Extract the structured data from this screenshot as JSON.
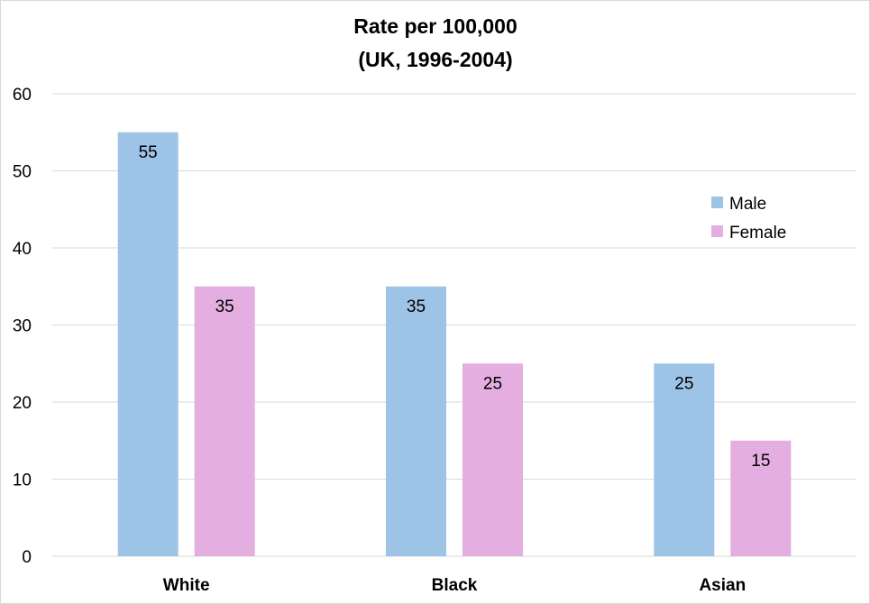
{
  "chart_data": {
    "type": "bar",
    "title": "Rate per 100,000",
    "subtitle": "(UK, 1996-2004)",
    "categories": [
      "White",
      "Black",
      "Asian"
    ],
    "series": [
      {
        "name": "Male",
        "values": [
          55,
          35,
          25
        ],
        "color": "#9dc3e6"
      },
      {
        "name": "Female",
        "values": [
          35,
          25,
          15
        ],
        "color": "#e4aee0"
      }
    ],
    "ylim": [
      0,
      60
    ],
    "yticks": [
      0,
      10,
      20,
      30,
      40,
      50,
      60
    ],
    "grid": true,
    "legend_position": "right",
    "data_labels": true
  }
}
